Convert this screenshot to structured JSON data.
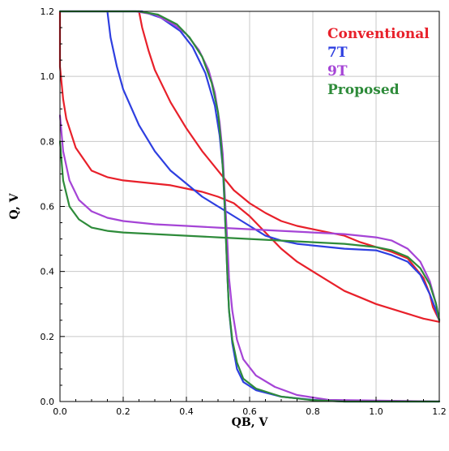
{
  "chart_data": {
    "type": "line",
    "title": "",
    "xlabel": "QB, V",
    "ylabel": "Q, V",
    "xlim": [
      0,
      1.2
    ],
    "ylim": [
      0,
      1.2
    ],
    "xticks": [
      "0.0",
      "0.2",
      "0.4",
      "0.6",
      "0.8",
      "1.0",
      "1.2"
    ],
    "yticks": [
      "0.0",
      "0.2",
      "0.4",
      "0.6",
      "0.8",
      "1.0",
      "1.2"
    ],
    "grid": true,
    "legend_position": "top-right",
    "series": [
      {
        "name": "Conventional",
        "color": "#e8202a",
        "curves": [
          [
            [
              0.25,
              1.2
            ],
            [
              0.26,
              1.15
            ],
            [
              0.28,
              1.08
            ],
            [
              0.3,
              1.02
            ],
            [
              0.32,
              0.98
            ],
            [
              0.35,
              0.92
            ],
            [
              0.4,
              0.84
            ],
            [
              0.45,
              0.77
            ],
            [
              0.5,
              0.71
            ],
            [
              0.55,
              0.65
            ],
            [
              0.6,
              0.61
            ],
            [
              0.65,
              0.58
            ],
            [
              0.7,
              0.555
            ],
            [
              0.75,
              0.54
            ],
            [
              0.8,
              0.53
            ],
            [
              0.85,
              0.52
            ],
            [
              0.9,
              0.51
            ],
            [
              0.95,
              0.49
            ],
            [
              1.0,
              0.475
            ],
            [
              1.05,
              0.46
            ],
            [
              1.1,
              0.44
            ],
            [
              1.15,
              0.38
            ],
            [
              1.17,
              0.33
            ],
            [
              1.18,
              0.29
            ],
            [
              1.19,
              0.27
            ],
            [
              1.2,
              0.25
            ]
          ],
          [
            [
              0.0,
              1.2
            ],
            [
              0.0,
              1.03
            ],
            [
              0.01,
              0.93
            ],
            [
              0.02,
              0.87
            ],
            [
              0.05,
              0.78
            ],
            [
              0.1,
              0.71
            ],
            [
              0.15,
              0.69
            ],
            [
              0.2,
              0.68
            ],
            [
              0.25,
              0.675
            ],
            [
              0.3,
              0.67
            ],
            [
              0.35,
              0.665
            ],
            [
              0.4,
              0.655
            ],
            [
              0.45,
              0.645
            ],
            [
              0.5,
              0.63
            ],
            [
              0.55,
              0.61
            ],
            [
              0.6,
              0.57
            ],
            [
              0.65,
              0.52
            ],
            [
              0.7,
              0.47
            ],
            [
              0.75,
              0.43
            ],
            [
              0.8,
              0.4
            ],
            [
              0.85,
              0.37
            ],
            [
              0.9,
              0.34
            ],
            [
              0.95,
              0.32
            ],
            [
              1.0,
              0.3
            ],
            [
              1.05,
              0.285
            ],
            [
              1.1,
              0.27
            ],
            [
              1.15,
              0.255
            ],
            [
              1.2,
              0.245
            ]
          ]
        ]
      },
      {
        "name": "7T",
        "color": "#2e3fe0",
        "curves": [
          [
            [
              0.15,
              1.2
            ],
            [
              0.16,
              1.12
            ],
            [
              0.18,
              1.03
            ],
            [
              0.2,
              0.96
            ],
            [
              0.25,
              0.85
            ],
            [
              0.3,
              0.77
            ],
            [
              0.35,
              0.71
            ],
            [
              0.4,
              0.67
            ],
            [
              0.45,
              0.63
            ],
            [
              0.5,
              0.6
            ],
            [
              0.55,
              0.57
            ],
            [
              0.6,
              0.54
            ],
            [
              0.65,
              0.51
            ],
            [
              0.7,
              0.495
            ],
            [
              0.75,
              0.485
            ],
            [
              0.8,
              0.48
            ],
            [
              0.9,
              0.47
            ],
            [
              1.0,
              0.465
            ],
            [
              1.05,
              0.45
            ],
            [
              1.1,
              0.43
            ],
            [
              1.14,
              0.39
            ],
            [
              1.17,
              0.33
            ],
            [
              1.19,
              0.28
            ],
            [
              1.2,
              0.25
            ]
          ],
          [
            [
              0.0,
              1.2
            ],
            [
              0.26,
              1.2
            ],
            [
              0.32,
              1.18
            ],
            [
              0.38,
              1.14
            ],
            [
              0.42,
              1.09
            ],
            [
              0.46,
              1.01
            ],
            [
              0.49,
              0.91
            ],
            [
              0.505,
              0.82
            ],
            [
              0.515,
              0.72
            ],
            [
              0.52,
              0.62
            ],
            [
              0.525,
              0.5
            ],
            [
              0.53,
              0.38
            ],
            [
              0.535,
              0.28
            ],
            [
              0.545,
              0.18
            ],
            [
              0.56,
              0.1
            ],
            [
              0.58,
              0.06
            ],
            [
              0.62,
              0.035
            ],
            [
              0.7,
              0.015
            ],
            [
              0.8,
              0.005
            ],
            [
              0.9,
              0.0
            ],
            [
              1.2,
              0.0
            ]
          ]
        ]
      },
      {
        "name": "9T",
        "color": "#a544d6",
        "curves": [
          [
            [
              0.0,
              0.88
            ],
            [
              0.01,
              0.77
            ],
            [
              0.03,
              0.68
            ],
            [
              0.06,
              0.62
            ],
            [
              0.1,
              0.585
            ],
            [
              0.15,
              0.565
            ],
            [
              0.2,
              0.555
            ],
            [
              0.3,
              0.545
            ],
            [
              0.4,
              0.54
            ],
            [
              0.5,
              0.535
            ],
            [
              0.6,
              0.53
            ],
            [
              0.7,
              0.525
            ],
            [
              0.8,
              0.52
            ],
            [
              0.9,
              0.515
            ],
            [
              1.0,
              0.505
            ],
            [
              1.05,
              0.495
            ],
            [
              1.1,
              0.47
            ],
            [
              1.14,
              0.43
            ],
            [
              1.17,
              0.37
            ],
            [
              1.19,
              0.3
            ],
            [
              1.2,
              0.25
            ]
          ],
          [
            [
              0.0,
              1.2
            ],
            [
              0.24,
              1.2
            ],
            [
              0.3,
              1.19
            ],
            [
              0.36,
              1.16
            ],
            [
              0.4,
              1.13
            ],
            [
              0.44,
              1.08
            ],
            [
              0.47,
              1.02
            ],
            [
              0.49,
              0.95
            ],
            [
              0.505,
              0.86
            ],
            [
              0.515,
              0.76
            ],
            [
              0.52,
              0.66
            ],
            [
              0.525,
              0.57
            ],
            [
              0.53,
              0.48
            ],
            [
              0.535,
              0.38
            ],
            [
              0.545,
              0.28
            ],
            [
              0.56,
              0.19
            ],
            [
              0.58,
              0.13
            ],
            [
              0.62,
              0.08
            ],
            [
              0.68,
              0.045
            ],
            [
              0.75,
              0.02
            ],
            [
              0.85,
              0.005
            ],
            [
              1.2,
              0.0
            ]
          ]
        ]
      },
      {
        "name": "Proposed",
        "color": "#2e8b3a",
        "curves": [
          [
            [
              0.0,
              0.8
            ],
            [
              0.01,
              0.68
            ],
            [
              0.03,
              0.6
            ],
            [
              0.06,
              0.56
            ],
            [
              0.1,
              0.535
            ],
            [
              0.15,
              0.525
            ],
            [
              0.2,
              0.52
            ],
            [
              0.3,
              0.515
            ],
            [
              0.4,
              0.51
            ],
            [
              0.5,
              0.505
            ],
            [
              0.6,
              0.5
            ],
            [
              0.7,
              0.495
            ],
            [
              0.8,
              0.49
            ],
            [
              0.9,
              0.485
            ],
            [
              1.0,
              0.475
            ],
            [
              1.05,
              0.465
            ],
            [
              1.1,
              0.445
            ],
            [
              1.14,
              0.41
            ],
            [
              1.17,
              0.36
            ],
            [
              1.19,
              0.3
            ],
            [
              1.2,
              0.25
            ]
          ],
          [
            [
              0.0,
              1.2
            ],
            [
              0.25,
              1.2
            ],
            [
              0.31,
              1.19
            ],
            [
              0.37,
              1.16
            ],
            [
              0.41,
              1.12
            ],
            [
              0.45,
              1.06
            ],
            [
              0.48,
              0.98
            ],
            [
              0.5,
              0.89
            ],
            [
              0.51,
              0.79
            ],
            [
              0.518,
              0.68
            ],
            [
              0.522,
              0.58
            ],
            [
              0.526,
              0.48
            ],
            [
              0.53,
              0.38
            ],
            [
              0.535,
              0.28
            ],
            [
              0.545,
              0.19
            ],
            [
              0.56,
              0.12
            ],
            [
              0.58,
              0.07
            ],
            [
              0.62,
              0.04
            ],
            [
              0.7,
              0.015
            ],
            [
              0.8,
              0.004
            ],
            [
              0.9,
              0.0
            ],
            [
              1.2,
              0.0
            ]
          ]
        ]
      }
    ]
  }
}
